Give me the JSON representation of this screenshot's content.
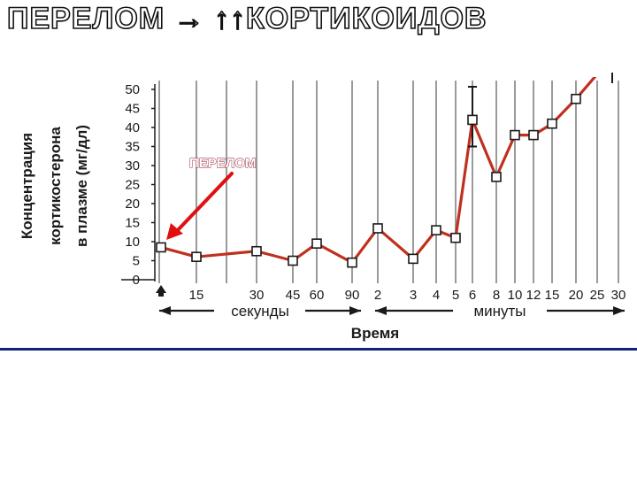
{
  "slide": {
    "title": "ПЕРЕЛОМ → ↑↑КОРТИКОИДОВ"
  },
  "colors": {
    "line": "#c0301e",
    "marker_fill": "#ffffff",
    "arrow": "#e01010",
    "divider": "#10237a",
    "grid": "#8f8f8f"
  },
  "chart_data": {
    "type": "line",
    "title": "",
    "ylabel_lines": [
      "Концентрация",
      "кортикостерона",
      "в плазме (мг/дл)"
    ],
    "xlabel": "Время",
    "ylim": [
      0,
      50
    ],
    "y_ticks": [
      "50",
      "45",
      "40",
      "35",
      "30",
      "25",
      "20",
      "15",
      "10",
      "5",
      "0"
    ],
    "x_ticks": [
      "15",
      "30",
      "45",
      "60",
      "90",
      "2",
      "3",
      "4",
      "5",
      "6",
      "8",
      "10",
      "12",
      "15",
      "20",
      "25",
      "30"
    ],
    "x_segments": [
      {
        "label": "секунды",
        "unit": "seconds"
      },
      {
        "label": "минуты",
        "unit": "minutes"
      }
    ],
    "grid": true,
    "points": [
      {
        "x": "0 с",
        "y": 8.5
      },
      {
        "x": "15 с",
        "y": 6
      },
      {
        "x": "30 с",
        "y": 7.5
      },
      {
        "x": "45 с",
        "y": 5
      },
      {
        "x": "60 с",
        "y": 9.5
      },
      {
        "x": "90 с",
        "y": 4.5
      },
      {
        "x": "2 мин",
        "y": 13.5
      },
      {
        "x": "3 мин",
        "y": 5.5
      },
      {
        "x": "4 мин",
        "y": 13
      },
      {
        "x": "5 мин",
        "y": 11
      },
      {
        "x": "6 мин",
        "y": 42
      },
      {
        "x": "8 мин",
        "y": 27
      },
      {
        "x": "10 мин",
        "y": 38
      },
      {
        "x": "12 мин",
        "y": 38
      },
      {
        "x": "15 мин",
        "y": 41
      },
      {
        "x": "20 мин",
        "y": 47.5
      },
      {
        "x": "25 мин",
        "y": 54
      }
    ],
    "error_bar": {
      "x": "6 мин",
      "low": 35,
      "high": 50
    },
    "annotation": "ПЕРЕЛОМ"
  }
}
